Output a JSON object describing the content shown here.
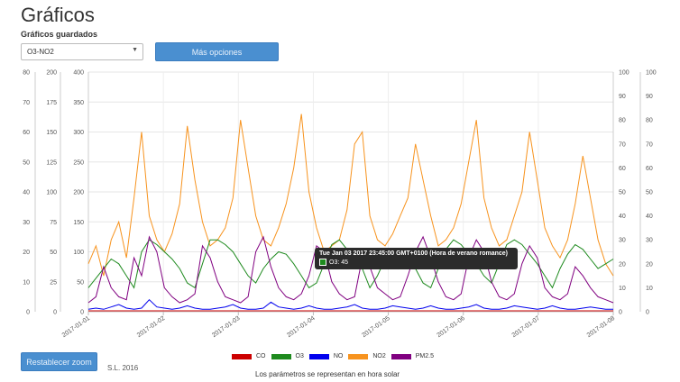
{
  "page": {
    "title": "Gráficos",
    "saved_label": "Gráficos guardados",
    "selected_saved": "O3-NO2",
    "more_options_label": "Más opciones",
    "reset_zoom_label": "Restablecer zoom",
    "footer_text": "S.L. 2016",
    "note_text": "Los parámetros se representan en hora solar"
  },
  "tooltip": {
    "header": "Tue Jan 03 2017 23:45:00 GMT+0100 (Hora de verano romance)",
    "value": "O3: 45"
  },
  "colors": {
    "CO": "#cc0000",
    "O3": "#1e8a1e",
    "NO": "#0000ee",
    "NO2": "#f7931e",
    "PM25": "#800080"
  },
  "chart_data": {
    "type": "line",
    "x_tick_labels": [
      "2017-01-01",
      "2017-01-02",
      "2017-01-03",
      "2017-01-04",
      "2017-01-05",
      "2017-01-06",
      "2017-01-07",
      "2017-01-08"
    ],
    "axes": [
      {
        "side": "left-outer",
        "ticks": [
          "0",
          "10",
          "20",
          "30",
          "40",
          "50",
          "60",
          "70",
          "80"
        ],
        "ylim": [
          0,
          80
        ]
      },
      {
        "side": "left-middle",
        "ticks": [
          "0",
          "25",
          "50",
          "75",
          "100",
          "125",
          "150",
          "175",
          "200"
        ],
        "ylim": [
          0,
          200
        ]
      },
      {
        "side": "left-inner",
        "ticks": [
          "0",
          "50",
          "100",
          "150",
          "200",
          "250",
          "300",
          "350",
          "400"
        ],
        "ylim": [
          0,
          400
        ]
      },
      {
        "side": "right-inner",
        "ticks": [
          "0",
          "10",
          "20",
          "30",
          "40",
          "50",
          "60",
          "70",
          "80",
          "90",
          "100"
        ],
        "ylim": [
          0,
          100
        ]
      },
      {
        "side": "right-outer",
        "ticks": [
          "0",
          "10",
          "20",
          "30",
          "40",
          "50",
          "60",
          "70",
          "80",
          "90",
          "100"
        ],
        "ylim": [
          0,
          100
        ]
      }
    ],
    "legend": [
      "CO",
      "O3",
      "NO",
      "NO2",
      "PM2.5"
    ],
    "legend_placement": "bottom",
    "series": [
      {
        "name": "NO2",
        "axis": "left-middle",
        "values": [
          40,
          55,
          30,
          60,
          75,
          45,
          95,
          150,
          80,
          60,
          50,
          65,
          90,
          155,
          110,
          75,
          55,
          60,
          70,
          95,
          160,
          120,
          80,
          60,
          55,
          70,
          90,
          120,
          165,
          100,
          70,
          50,
          55,
          60,
          85,
          140,
          150,
          80,
          60,
          55,
          65,
          80,
          95,
          140,
          110,
          80,
          55,
          60,
          70,
          90,
          125,
          160,
          95,
          70,
          55,
          60,
          80,
          100,
          150,
          110,
          70,
          55,
          45,
          60,
          90,
          130,
          95,
          60,
          40,
          30
        ]
      },
      {
        "name": "O3",
        "axis": "right-inner",
        "values": [
          10,
          14,
          18,
          22,
          20,
          15,
          10,
          25,
          30,
          28,
          25,
          22,
          18,
          12,
          10,
          20,
          30,
          30,
          28,
          25,
          20,
          15,
          12,
          18,
          22,
          25,
          24,
          20,
          15,
          10,
          12,
          20,
          28,
          30,
          26,
          22,
          18,
          10,
          15,
          22,
          26,
          25,
          22,
          18,
          12,
          10,
          18,
          26,
          30,
          28,
          24,
          20,
          15,
          12,
          20,
          28,
          30,
          28,
          24,
          20,
          15,
          10,
          18,
          24,
          28,
          26,
          22,
          18,
          20,
          22
        ]
      },
      {
        "name": "PM2.5",
        "axis": "left-outer",
        "values": [
          3,
          5,
          15,
          8,
          5,
          4,
          18,
          12,
          25,
          20,
          8,
          5,
          3,
          4,
          6,
          22,
          18,
          10,
          5,
          4,
          3,
          5,
          20,
          25,
          15,
          8,
          5,
          4,
          6,
          12,
          22,
          20,
          10,
          6,
          4,
          5,
          18,
          15,
          8,
          6,
          4,
          5,
          12,
          20,
          25,
          18,
          10,
          5,
          4,
          6,
          18,
          24,
          20,
          10,
          5,
          4,
          6,
          16,
          22,
          18,
          8,
          5,
          4,
          6,
          15,
          12,
          8,
          5,
          4,
          3
        ]
      },
      {
        "name": "NO",
        "axis": "left-middle",
        "values": [
          2,
          3,
          2,
          4,
          6,
          3,
          2,
          3,
          10,
          4,
          3,
          2,
          3,
          5,
          3,
          2,
          2,
          3,
          4,
          6,
          3,
          2,
          2,
          3,
          8,
          4,
          3,
          2,
          3,
          5,
          3,
          2,
          2,
          3,
          4,
          6,
          3,
          2,
          2,
          3,
          5,
          4,
          3,
          2,
          3,
          5,
          3,
          2,
          2,
          3,
          4,
          6,
          3,
          2,
          2,
          3,
          5,
          4,
          3,
          2,
          3,
          5,
          3,
          2,
          2,
          3,
          4,
          3,
          2,
          2
        ]
      },
      {
        "name": "CO",
        "axis": "left-outer",
        "values": [
          0.3,
          0.3,
          0.3,
          0.3,
          0.3,
          0.3,
          0.3,
          0.3,
          0.3,
          0.3,
          0.3,
          0.3,
          0.3,
          0.3,
          0.3,
          0.3,
          0.3,
          0.3,
          0.3,
          0.3,
          0.3,
          0.3,
          0.3,
          0.3,
          0.3,
          0.3,
          0.3,
          0.3,
          0.3,
          0.3,
          0.3,
          0.3,
          0.3,
          0.3,
          0.3,
          0.3,
          0.3,
          0.3,
          0.3,
          0.3,
          0.3,
          0.3,
          0.3,
          0.3,
          0.3,
          0.3,
          0.3,
          0.3,
          0.3,
          0.3,
          0.3,
          0.3,
          0.3,
          0.3,
          0.3,
          0.3,
          0.3,
          0.3,
          0.3,
          0.3,
          0.3,
          0.3,
          0.3,
          0.3,
          0.3,
          0.3,
          0.3,
          0.3,
          0.3,
          0.3
        ]
      }
    ]
  }
}
